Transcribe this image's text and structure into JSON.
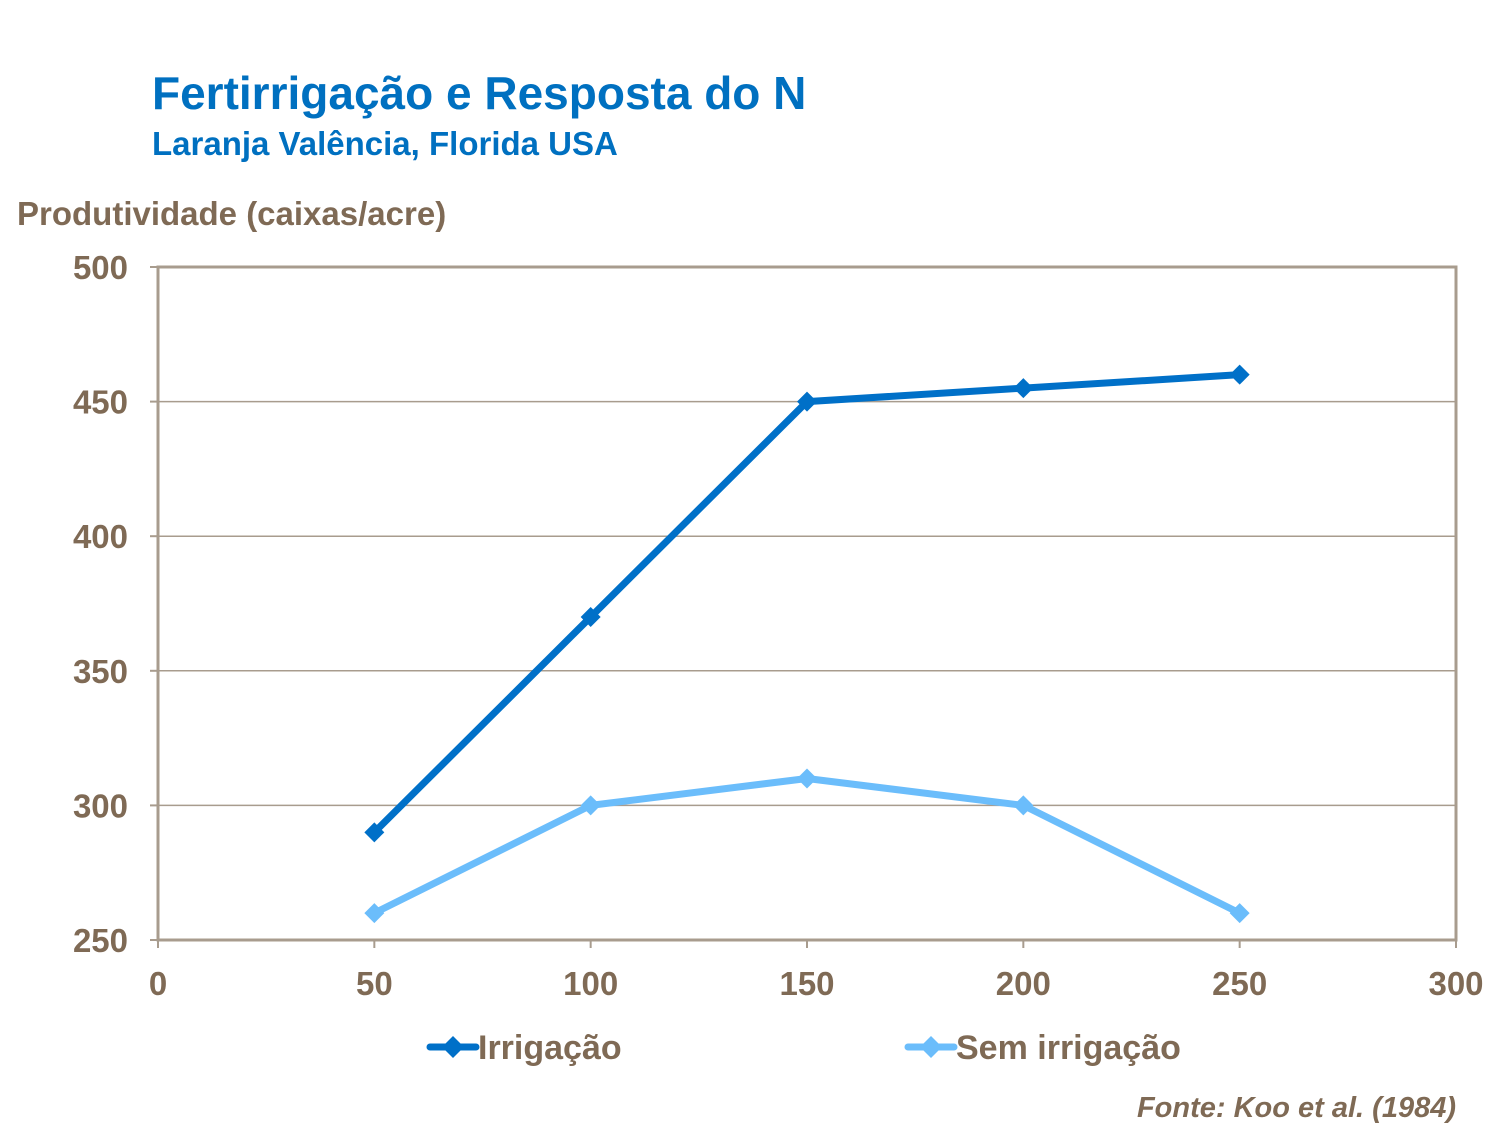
{
  "chart_data": {
    "type": "line",
    "title": "Fertirrigação e Resposta do N",
    "subtitle": "Laranja Valência, Florida USA",
    "xlabel": "",
    "ylabel": "Produtividade (caixas/acre)",
    "xlim": [
      0,
      300
    ],
    "ylim": [
      250,
      500
    ],
    "xticks": [
      0,
      50,
      100,
      150,
      200,
      250,
      300
    ],
    "yticks": [
      250,
      300,
      350,
      400,
      450,
      500
    ],
    "grid": "horizontal",
    "legend_position": "bottom",
    "x": [
      50,
      100,
      150,
      200,
      250
    ],
    "series": [
      {
        "name": "Irrigação",
        "values": [
          290,
          370,
          450,
          455,
          460
        ],
        "color": "#0070C8",
        "marker": "diamond"
      },
      {
        "name": "Sem irrigação",
        "values": [
          260,
          300,
          310,
          300,
          260
        ],
        "color": "#6BBDFB",
        "marker": "diamond"
      }
    ],
    "source": "Fonte: Koo et al. (1984)"
  }
}
